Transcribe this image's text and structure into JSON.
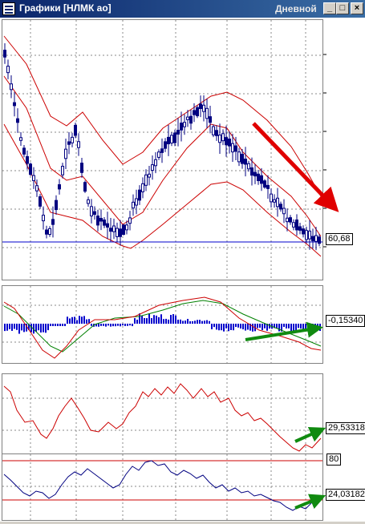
{
  "window": {
    "title": "Графики [НЛМК ао]",
    "timeframe": "Дневной",
    "minimize_glyph": "_",
    "maximize_glyph": "□",
    "close_glyph": "×"
  },
  "price_pane": {
    "last_price": "60,68",
    "price_line_color": "#0000cc",
    "candle_color": "#000080",
    "band_color": "#cc0000"
  },
  "macd_pane": {
    "value": "-0,15340",
    "histogram_color": "#0000cc"
  },
  "rsi_pane": {
    "value": "29,53318"
  },
  "stoch_pane": {
    "level_top": "80",
    "value": "24,03182"
  },
  "annotations": {
    "down_arrow_color": "#e00000",
    "up_arrow_color": "#108a10"
  }
}
